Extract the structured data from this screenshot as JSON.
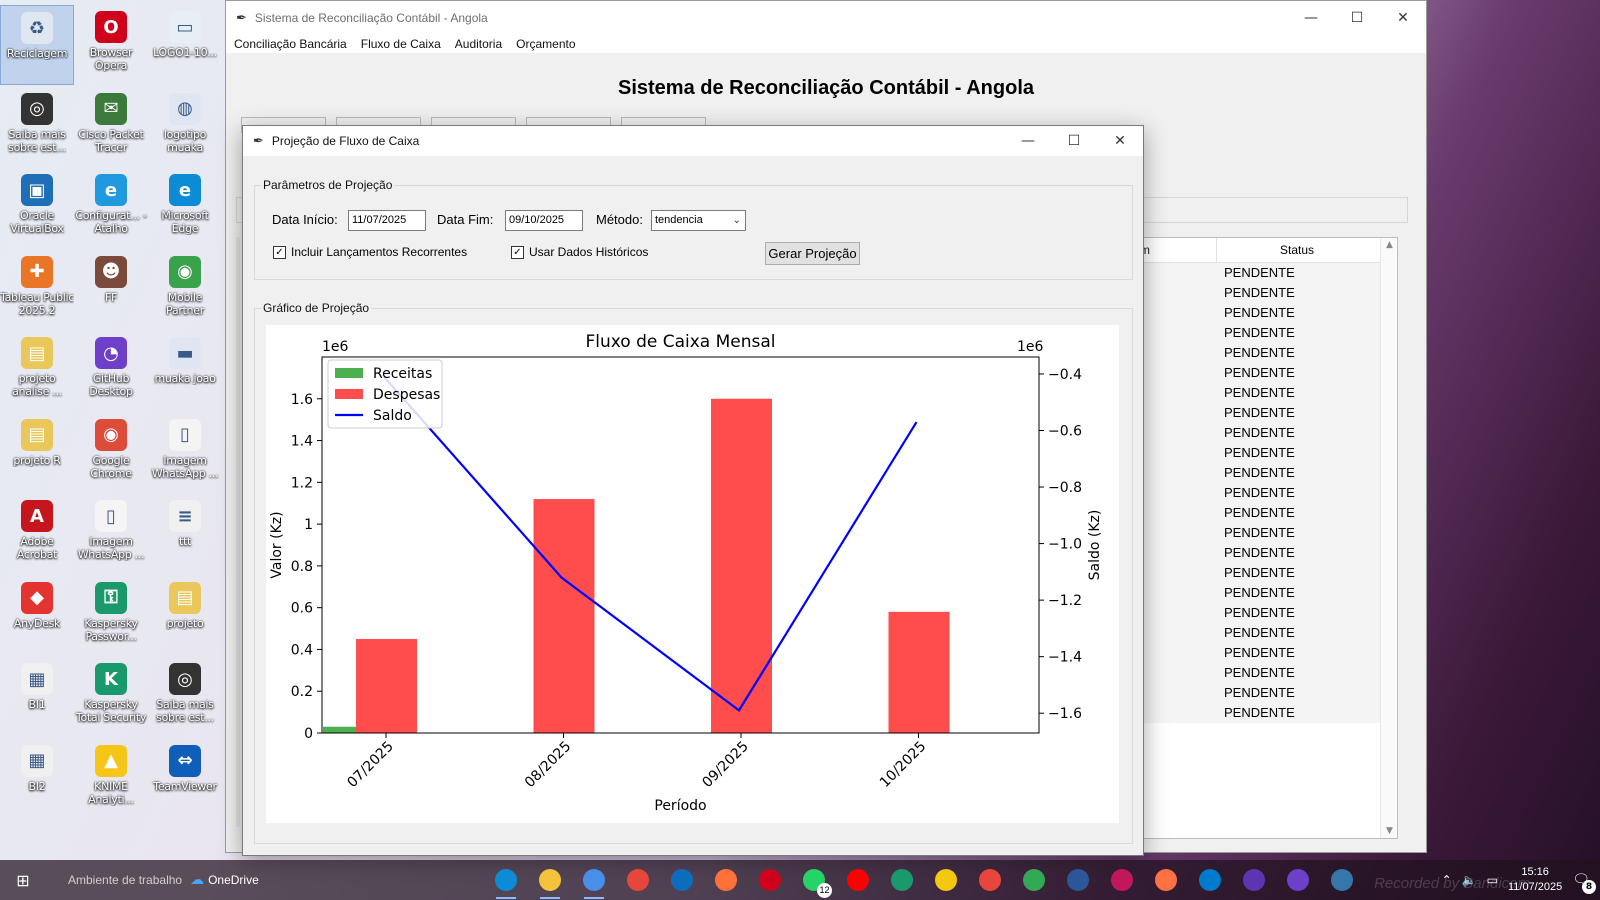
{
  "desktop": {
    "icons": [
      {
        "label": "Reciclagem",
        "icon": "recycle-bin-icon",
        "color": "#dfe7f0",
        "glyph": "♻",
        "selected": true
      },
      {
        "label": "Browser Opera",
        "icon": "opera-icon",
        "color": "#d0021b",
        "glyph": "O"
      },
      {
        "label": "LOGO1-10...",
        "icon": "image-file-icon",
        "color": "#e8eef6",
        "glyph": "▭"
      },
      {
        "label": "Saiba mais sobre est...",
        "icon": "camera-icon",
        "color": "#333333",
        "glyph": "◎"
      },
      {
        "label": "Cisco Packet Tracer",
        "icon": "cisco-icon",
        "color": "#3b7a3b",
        "glyph": "✉"
      },
      {
        "label": "logotipo muaka",
        "icon": "image-file-icon",
        "color": "#dfe6f2",
        "glyph": "◍"
      },
      {
        "label": "Oracle VirtualBox",
        "icon": "virtualbox-icon",
        "color": "#1e6fb8",
        "glyph": "▣"
      },
      {
        "label": "Configurat... - Atalho",
        "icon": "edge-icon",
        "color": "#1f9adf",
        "glyph": "e"
      },
      {
        "label": "Microsoft Edge",
        "icon": "edge-icon",
        "color": "#0c8bd6",
        "glyph": "e"
      },
      {
        "label": "Tableau Public 2025.2",
        "icon": "tableau-icon",
        "color": "#e97627",
        "glyph": "✚"
      },
      {
        "label": "FF",
        "icon": "person-photo-icon",
        "color": "#7a4a3a",
        "glyph": "☻"
      },
      {
        "label": "Mobile Partner",
        "icon": "mobile-partner-icon",
        "color": "#3aa24a",
        "glyph": "◉"
      },
      {
        "label": "projeto analise ...",
        "icon": "folder-icon",
        "color": "#e9c75a",
        "glyph": "▤"
      },
      {
        "label": "GitHub Desktop",
        "icon": "github-desktop-icon",
        "color": "#6e40c9",
        "glyph": "◔"
      },
      {
        "label": "muaka joao",
        "icon": "image-file-icon",
        "color": "#dfe6f2",
        "glyph": "▬"
      },
      {
        "label": "projeto R",
        "icon": "folder-icon",
        "color": "#e9c75a",
        "glyph": "▤"
      },
      {
        "label": "Google Chrome",
        "icon": "chrome-icon",
        "color": "#dd4b39",
        "glyph": "◉"
      },
      {
        "label": "Imagem WhatsApp ...",
        "icon": "image-file-icon",
        "color": "#f4f4f4",
        "glyph": "▯"
      },
      {
        "label": "Adobe Acrobat",
        "icon": "acrobat-icon",
        "color": "#c4161c",
        "glyph": "A"
      },
      {
        "label": "Imagem WhatsApp ...",
        "icon": "image-file-icon",
        "color": "#f4f4f4",
        "glyph": "▯"
      },
      {
        "label": "ttt",
        "icon": "text-file-icon",
        "color": "#f0f0f0",
        "glyph": "≡"
      },
      {
        "label": "AnyDesk",
        "icon": "anydesk-icon",
        "color": "#e3342f",
        "glyph": "◆"
      },
      {
        "label": "Kaspersky Passwor...",
        "icon": "kaspersky-password-icon",
        "color": "#1a9a6c",
        "glyph": "⚿"
      },
      {
        "label": "projeto",
        "icon": "folder-icon",
        "color": "#e9c75a",
        "glyph": "▤"
      },
      {
        "label": "BI1",
        "icon": "powerbi-file-icon",
        "color": "#f0f0f0",
        "glyph": "▦"
      },
      {
        "label": "Kaspersky Total Security",
        "icon": "kaspersky-icon",
        "color": "#1a9a6c",
        "glyph": "K"
      },
      {
        "label": "Saiba mais sobre est...",
        "icon": "camera-icon",
        "color": "#333333",
        "glyph": "◎"
      },
      {
        "label": "BI2",
        "icon": "powerbi-file-icon",
        "color": "#f0f0f0",
        "glyph": "▦"
      },
      {
        "label": "KNIME Analyti...",
        "icon": "knime-icon",
        "color": "#f5c518",
        "glyph": "▲"
      },
      {
        "label": "TeamViewer",
        "icon": "teamviewer-icon",
        "color": "#0e5fb7",
        "glyph": "⇔"
      }
    ]
  },
  "main_window": {
    "title": "Sistema de Reconciliação Contábil - Angola",
    "menu": [
      "Conciliação Bancária",
      "Fluxo de Caixa",
      "Auditoria",
      "Orçamento"
    ],
    "heading": "Sistema de Reconciliação Contábil - Angola",
    "table": {
      "col_origem": "rigem",
      "col_status": "Status",
      "rows": [
        "PENDENTE",
        "PENDENTE",
        "PENDENTE",
        "PENDENTE",
        "PENDENTE",
        "PENDENTE",
        "PENDENTE",
        "PENDENTE",
        "PENDENTE",
        "PENDENTE",
        "PENDENTE",
        "PENDENTE",
        "PENDENTE",
        "PENDENTE",
        "PENDENTE",
        "PENDENTE",
        "PENDENTE",
        "PENDENTE",
        "PENDENTE",
        "PENDENTE",
        "PENDENTE",
        "PENDENTE",
        "PENDENTE"
      ]
    }
  },
  "dialog": {
    "title": "Projeção de Fluxo de Caixa",
    "params": {
      "group_title": "Parâmetros de Projeção",
      "start_label": "Data Início:",
      "start_value": "11/07/2025",
      "end_label": "Data Fim:",
      "end_value": "09/10/2025",
      "method_label": "Método:",
      "method_value": "tendencia",
      "recurring_label": "Incluir Lançamentos Recorrentes",
      "recurring_checked": true,
      "historic_label": "Usar Dados Históricos",
      "historic_checked": true,
      "generate_label": "Gerar Projeção"
    },
    "graph_group_title": "Gráfico de Projeção"
  },
  "chart_data": {
    "type": "bar",
    "title": "Fluxo de Caixa Mensal",
    "xlabel": "Período",
    "ylabel": "Valor (Kz)",
    "y2label": "Saldo (Kz)",
    "y_scale_label": "1e6",
    "y2_scale_label": "1e6",
    "categories": [
      "07/2025",
      "08/2025",
      "09/2025",
      "10/2025"
    ],
    "ylim": [
      0,
      1.8
    ],
    "y_ticks": [
      0.0,
      0.2,
      0.4,
      0.6,
      0.8,
      1.0,
      1.2,
      1.4,
      1.6
    ],
    "y2lim": [
      -1.67,
      -0.34
    ],
    "y2_ticks": [
      -1.6,
      -1.4,
      -1.2,
      -1.0,
      -0.8,
      -0.6,
      -0.4
    ],
    "series": [
      {
        "name": "Receitas",
        "type": "bar",
        "color": "#4caf50",
        "values": [
          0.03,
          0,
          0,
          0
        ]
      },
      {
        "name": "Despesas",
        "type": "bar",
        "color": "#ff4d4d",
        "values": [
          0.45,
          1.12,
          1.6,
          0.58
        ]
      },
      {
        "name": "Saldo",
        "type": "line",
        "axis": "right",
        "color": "#0000ff",
        "values": [
          -0.41,
          -1.12,
          -1.59,
          -0.57
        ]
      }
    ],
    "legend_position": "top-left",
    "grid": false
  },
  "taskbar": {
    "desktop_label": "Ambiente de trabalho",
    "onedrive_label": "OneDrive",
    "apps": [
      {
        "icon": "edge-icon",
        "color": "#0c8bd6"
      },
      {
        "icon": "file-explorer-icon",
        "color": "#f3c43b"
      },
      {
        "icon": "store-icon",
        "color": "#4a8fe7"
      },
      {
        "icon": "chrome-icon",
        "color": "#e8453c"
      },
      {
        "icon": "outlook-icon",
        "color": "#0f6cbd"
      },
      {
        "icon": "firefox-icon",
        "color": "#ff7139"
      },
      {
        "icon": "opera-icon",
        "color": "#d0021b"
      },
      {
        "icon": "whatsapp-icon",
        "color": "#25d366",
        "badge": "12"
      },
      {
        "icon": "youtube-icon",
        "color": "#ff0000"
      },
      {
        "icon": "kaspersky-icon",
        "color": "#1a9a6c"
      },
      {
        "icon": "powerbi-icon",
        "color": "#f2c811"
      },
      {
        "icon": "chrome-profile-icon",
        "color": "#e8453c"
      },
      {
        "icon": "chrome-profile-icon",
        "color": "#34a853"
      },
      {
        "icon": "word-icon",
        "color": "#2b579a"
      },
      {
        "icon": "chrome-profile-icon",
        "color": "#c2185b"
      },
      {
        "icon": "chrome-profile-icon",
        "color": "#ff7043"
      },
      {
        "icon": "vscode-icon",
        "color": "#007acc"
      },
      {
        "icon": "chrome-profile-icon",
        "color": "#5e35b1"
      },
      {
        "icon": "github-desktop-icon",
        "color": "#6e40c9"
      },
      {
        "icon": "python-icon",
        "color": "#3776ab"
      }
    ],
    "clock_time": "15:16",
    "clock_date": "11/07/2025",
    "notification_count": "8",
    "watermark": "Recorded by Bandicam"
  }
}
